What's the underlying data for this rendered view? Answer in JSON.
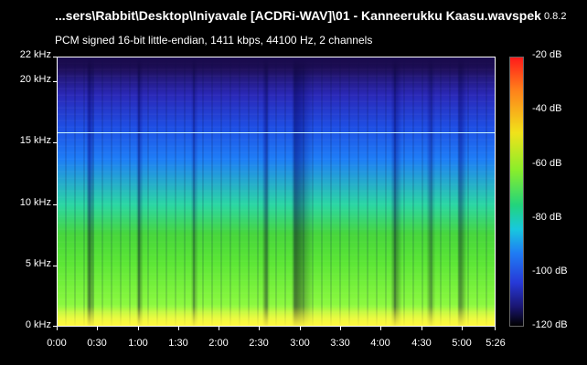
{
  "title_bar": {
    "file_path": "...sers\\Rabbit\\Desktop\\Iniyavale [ACDRi-WAV]\\01 - Kanneerukku Kaasu.wav",
    "app_name": "spek",
    "app_version": "0.8.2"
  },
  "audio_info": "PCM signed 16-bit little-endian, 1411 kbps, 44100 Hz, 2 channels",
  "y_axis": {
    "unit": "kHz",
    "labels": [
      "22 kHz",
      "20 kHz",
      "15 kHz",
      "10 kHz",
      "5 kHz",
      "0 kHz"
    ]
  },
  "x_axis": {
    "labels": [
      "0:00",
      "0:30",
      "1:00",
      "1:30",
      "2:00",
      "2:30",
      "3:00",
      "3:30",
      "4:00",
      "4:30",
      "5:00",
      "5:26"
    ]
  },
  "colorbar": {
    "labels": [
      "-20 dB",
      "-40 dB",
      "-60 dB",
      "-80 dB",
      "-100 dB",
      "-120 dB"
    ],
    "colors": {
      "max": "#ff1a1a",
      "high": "#f1e21a",
      "mid": "#22d47c",
      "low": "#2739d8",
      "min": "#000000"
    }
  },
  "spectrogram": {
    "cutoff_khz": 15.8,
    "duration": "5:26"
  }
}
